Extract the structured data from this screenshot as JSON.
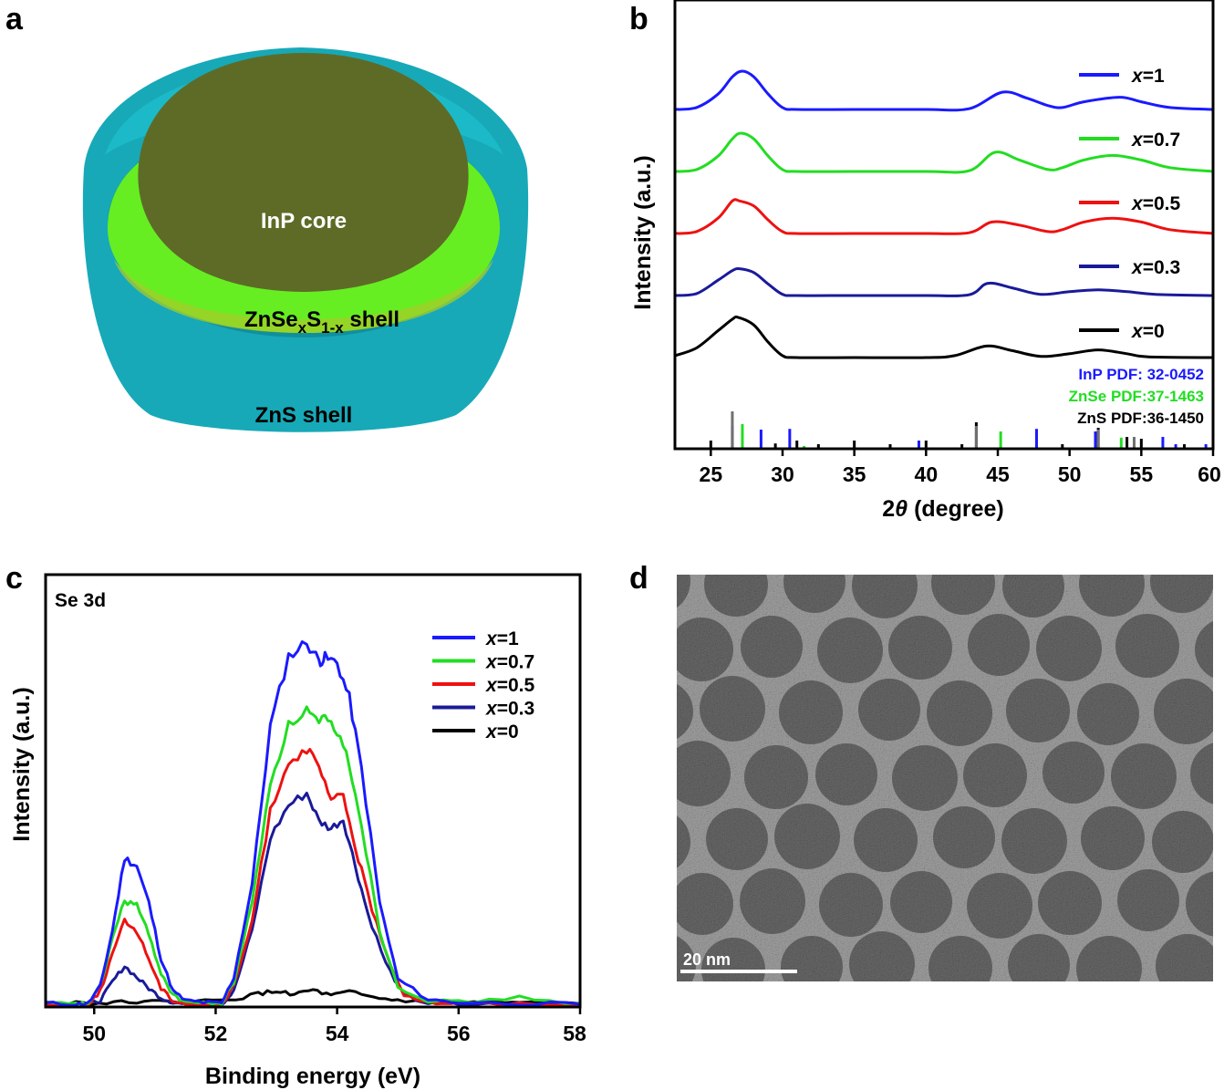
{
  "panel_labels": {
    "a": "a",
    "b": "b",
    "c": "c",
    "d": "d"
  },
  "panel_a": {
    "core_label": "InP core",
    "shell1_main": "ZnSe",
    "shell1_sub1": "x",
    "shell1_mid": "S",
    "shell1_sub2": "1-x",
    "shell1_end": " shell",
    "shell2_label": "ZnS shell",
    "colors": {
      "core": "#5e6b27",
      "mid_shell": "#66ee22",
      "outer_shell": "#17a9b8"
    }
  },
  "panel_d": {
    "scale_bar": "20 nm"
  },
  "chart_data": [
    {
      "id": "b",
      "type": "line",
      "title": "",
      "xlabel_pre": "2",
      "xlabel_theta": "θ",
      "xlabel_post": " (degree)",
      "ylabel": "Intensity (a.u.)",
      "xlim": [
        22.5,
        60
      ],
      "xticks": [
        "25",
        "30",
        "35",
        "40",
        "45",
        "50",
        "55",
        "60"
      ],
      "xtick_values": [
        25,
        30,
        35,
        40,
        45,
        50,
        55,
        60
      ],
      "legend_prefix": "x",
      "series": [
        {
          "name": "=1",
          "color": "#1a1aff",
          "offset": 4,
          "x": [
            22.5,
            24,
            25.5,
            26.5,
            27.2,
            28,
            29,
            30,
            31,
            35,
            40,
            43,
            45.3,
            47,
            48.5,
            49.5,
            51,
            53.5,
            55,
            57,
            60
          ],
          "y": [
            0,
            0.05,
            0.4,
            0.85,
            1,
            0.85,
            0.4,
            0.05,
            0,
            0,
            0,
            0.02,
            0.45,
            0.3,
            0.1,
            0.05,
            0.2,
            0.32,
            0.2,
            0.05,
            0
          ]
        },
        {
          "name": "=0.7",
          "color": "#22dd22",
          "offset": 3,
          "x": [
            22.5,
            24,
            25.5,
            26.5,
            27.1,
            28,
            29,
            30,
            31,
            35,
            40,
            43,
            44.8,
            46.5,
            48.5,
            49.5,
            51,
            53,
            55,
            57,
            60
          ],
          "y": [
            0,
            0.05,
            0.4,
            0.85,
            1,
            0.85,
            0.4,
            0.05,
            0,
            0,
            0,
            0.02,
            0.5,
            0.3,
            0.05,
            0.1,
            0.3,
            0.42,
            0.3,
            0.1,
            0
          ]
        },
        {
          "name": "=0.5",
          "color": "#ee1111",
          "offset": 2,
          "x": [
            22.5,
            24,
            25.5,
            26.5,
            27,
            28,
            29,
            30,
            31,
            35,
            40,
            43,
            44.6,
            46.5,
            48.5,
            49.5,
            51,
            53,
            55,
            57,
            60
          ],
          "y": [
            0,
            0.05,
            0.4,
            0.85,
            0.85,
            0.72,
            0.35,
            0.05,
            0,
            0,
            0,
            0.02,
            0.3,
            0.22,
            0.05,
            0.1,
            0.3,
            0.4,
            0.3,
            0.1,
            0
          ]
        },
        {
          "name": "=0.3",
          "color": "#1a1a99",
          "offset": 1,
          "x": [
            22.5,
            24,
            25.5,
            26.5,
            27,
            28,
            29,
            30,
            31,
            35,
            40,
            43,
            44.3,
            46,
            48,
            50,
            52,
            54,
            56,
            60
          ],
          "y": [
            0,
            0.05,
            0.4,
            0.65,
            0.7,
            0.6,
            0.3,
            0.03,
            0,
            0,
            0,
            0.02,
            0.32,
            0.2,
            0.03,
            0.1,
            0.15,
            0.1,
            0.03,
            0
          ]
        },
        {
          "name": "=0",
          "color": "#000000",
          "offset": 0,
          "x": [
            22.5,
            24,
            25.5,
            26.5,
            26.9,
            28,
            29,
            30,
            31,
            35,
            40,
            42,
            44.2,
            46,
            48,
            50,
            52,
            54,
            55.5,
            60
          ],
          "y": [
            0.05,
            0.25,
            0.7,
            1,
            1.05,
            0.85,
            0.4,
            0.05,
            0,
            0,
            0,
            0.05,
            0.3,
            0.18,
            0.03,
            0.1,
            0.2,
            0.1,
            0.02,
            0
          ]
        }
      ],
      "reference_patterns": [
        {
          "name": "InP PDF: 32-0452",
          "color": "#1a1aff",
          "positions": [
            26.5,
            28.5,
            30.5,
            39.5,
            47.7,
            51.8,
            56.5,
            57.4,
            59.5
          ],
          "heights": [
            0.6,
            0.5,
            0.52,
            0.2,
            0.52,
            0.45,
            0.3,
            0.1,
            0.1
          ]
        },
        {
          "name": "ZnSe PDF:37-1463",
          "color": "#22dd22",
          "positions": [
            27.2,
            31.5,
            45.2,
            53.6
          ],
          "heights": [
            0.65,
            0.05,
            0.45,
            0.28
          ]
        },
        {
          "name": "ZnS PDF:36-1450",
          "color": "#000000",
          "positions": [
            25,
            29.5,
            31,
            32.5,
            35,
            37.5,
            40,
            42.5,
            43.5,
            49.5,
            52,
            54,
            55,
            58
          ],
          "heights": [
            0.2,
            0.12,
            0.2,
            0.1,
            0.2,
            0.1,
            0.2,
            0.1,
            0.7,
            0.1,
            0.55,
            0.3,
            0.25,
            0.1
          ]
        },
        {
          "name": "",
          "color": "#707070",
          "positions": [
            26.5,
            43.5,
            52,
            54.5
          ],
          "heights": [
            1,
            0.6,
            0.5,
            0.3
          ]
        }
      ]
    },
    {
      "id": "c",
      "type": "line",
      "title": "Se 3d",
      "xlabel": "Binding energy (eV)",
      "ylabel": "Intensity (a.u.)",
      "xlim": [
        49.2,
        58
      ],
      "xticks": [
        "50",
        "52",
        "54",
        "56",
        "58"
      ],
      "xtick_values": [
        50,
        52,
        54,
        56,
        58
      ],
      "legend_prefix": "x",
      "series": [
        {
          "name": "=1",
          "color": "#1a1aff",
          "x": [
            49.2,
            49.7,
            49.9,
            50.1,
            50.3,
            50.5,
            50.7,
            50.9,
            51.1,
            51.3,
            51.5,
            51.8,
            52.1,
            52.3,
            52.6,
            52.9,
            53.2,
            53.5,
            53.7,
            53.8,
            54,
            54.2,
            54.4,
            54.7,
            55,
            55.5,
            56,
            57,
            58
          ],
          "y": [
            2,
            1,
            2,
            20,
            80,
            158,
            150,
            110,
            50,
            15,
            5,
            3,
            2,
            30,
            130,
            300,
            375,
            390,
            370,
            373,
            368,
            330,
            255,
            110,
            28,
            6,
            3,
            2,
            1
          ]
        },
        {
          "name": "=0.7",
          "color": "#22dd22",
          "x": [
            49.2,
            49.7,
            49.9,
            50.1,
            50.3,
            50.5,
            50.7,
            50.9,
            51.1,
            51.3,
            51.5,
            51.8,
            52.1,
            52.3,
            52.6,
            52.9,
            53.2,
            53.5,
            53.7,
            53.8,
            54,
            54.2,
            54.4,
            54.7,
            55,
            55.5,
            56,
            57,
            58
          ],
          "y": [
            2,
            1,
            2,
            20,
            72,
            112,
            108,
            75,
            35,
            10,
            4,
            2,
            2,
            25,
            110,
            240,
            300,
            318,
            302,
            308,
            295,
            260,
            195,
            80,
            20,
            5,
            3,
            8,
            2
          ]
        },
        {
          "name": "=0.5",
          "color": "#ee1111",
          "x": [
            49.2,
            49.7,
            49.9,
            50.1,
            50.3,
            50.5,
            50.7,
            50.9,
            51.1,
            51.3,
            51.5,
            51.8,
            52.1,
            52.3,
            52.6,
            52.9,
            53.2,
            53.5,
            53.7,
            53.9,
            54.1,
            54.3,
            54.5,
            54.8,
            55.1,
            55.5,
            56,
            57,
            58
          ],
          "y": [
            1,
            0,
            1,
            15,
            55,
            90,
            80,
            50,
            18,
            5,
            2,
            1,
            1,
            20,
            90,
            210,
            262,
            275,
            255,
            220,
            225,
            170,
            120,
            55,
            12,
            3,
            2,
            1,
            1
          ]
        },
        {
          "name": "=0.3",
          "color": "#1a1a99",
          "x": [
            49.2,
            49.7,
            49.9,
            50.1,
            50.3,
            50.5,
            50.7,
            50.9,
            51.1,
            51.3,
            51.5,
            51.8,
            52.1,
            52.3,
            52.6,
            52.9,
            53.2,
            53.5,
            53.7,
            53.9,
            54.1,
            54.3,
            54.5,
            54.8,
            55.1,
            55.5,
            56,
            57,
            58
          ],
          "y": [
            1,
            0,
            1,
            5,
            25,
            42,
            30,
            18,
            8,
            3,
            1,
            1,
            1,
            15,
            80,
            180,
            215,
            228,
            198,
            190,
            200,
            150,
            100,
            45,
            10,
            2,
            1,
            1,
            1
          ]
        },
        {
          "name": "=0",
          "color": "#000000",
          "x": [
            49.2,
            49.7,
            50.2,
            50.7,
            51.2,
            51.7,
            52.2,
            52.7,
            53,
            53.3,
            53.6,
            53.9,
            54.2,
            54.6,
            55,
            55.5,
            56,
            56.5,
            57,
            58
          ],
          "y": [
            2,
            3,
            2,
            4,
            3,
            4,
            5,
            12,
            15,
            12,
            16,
            10,
            14,
            8,
            5,
            4,
            3,
            3,
            2,
            2
          ]
        }
      ]
    }
  ]
}
